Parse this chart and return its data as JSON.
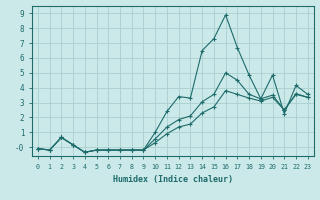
{
  "xlabel": "Humidex (Indice chaleur)",
  "xlim": [
    -0.5,
    23.5
  ],
  "ylim": [
    -0.6,
    9.5
  ],
  "xticks": [
    0,
    1,
    2,
    3,
    4,
    5,
    6,
    7,
    8,
    9,
    10,
    11,
    12,
    13,
    14,
    15,
    16,
    17,
    18,
    19,
    20,
    21,
    22,
    23
  ],
  "yticks": [
    0,
    1,
    2,
    3,
    4,
    5,
    6,
    7,
    8,
    9
  ],
  "background_color": "#cce9e9",
  "grid_color": "#aacfcf",
  "line_color": "#1e6b6b",
  "line1_x": [
    0,
    1,
    2,
    3,
    4,
    5,
    6,
    7,
    8,
    9,
    10,
    11,
    12,
    13,
    14,
    15,
    16,
    17,
    18,
    19,
    20,
    21,
    22,
    23
  ],
  "line1_y": [
    -0.1,
    -0.2,
    0.65,
    0.15,
    -0.35,
    -0.2,
    -0.2,
    -0.2,
    -0.2,
    -0.2,
    1.0,
    2.4,
    3.4,
    3.3,
    6.5,
    7.3,
    8.9,
    6.7,
    4.85,
    3.25,
    4.85,
    2.25,
    4.15,
    3.55
  ],
  "line2_x": [
    0,
    1,
    2,
    3,
    4,
    5,
    6,
    7,
    8,
    9,
    10,
    11,
    12,
    13,
    14,
    15,
    16,
    17,
    18,
    19,
    20,
    21,
    22,
    23
  ],
  "line2_y": [
    -0.1,
    -0.2,
    0.65,
    0.15,
    -0.35,
    -0.2,
    -0.2,
    -0.2,
    -0.2,
    -0.2,
    0.55,
    1.35,
    1.85,
    2.1,
    3.05,
    3.55,
    5.0,
    4.5,
    3.55,
    3.25,
    3.5,
    2.5,
    3.6,
    3.35
  ],
  "line3_x": [
    0,
    1,
    2,
    3,
    4,
    5,
    6,
    7,
    8,
    9,
    10,
    11,
    12,
    13,
    14,
    15,
    16,
    17,
    18,
    19,
    20,
    21,
    22,
    23
  ],
  "line3_y": [
    -0.1,
    -0.2,
    0.65,
    0.15,
    -0.35,
    -0.2,
    -0.2,
    -0.2,
    -0.2,
    -0.2,
    0.3,
    0.9,
    1.35,
    1.55,
    2.3,
    2.7,
    3.8,
    3.55,
    3.3,
    3.1,
    3.35,
    2.5,
    3.55,
    3.35
  ]
}
